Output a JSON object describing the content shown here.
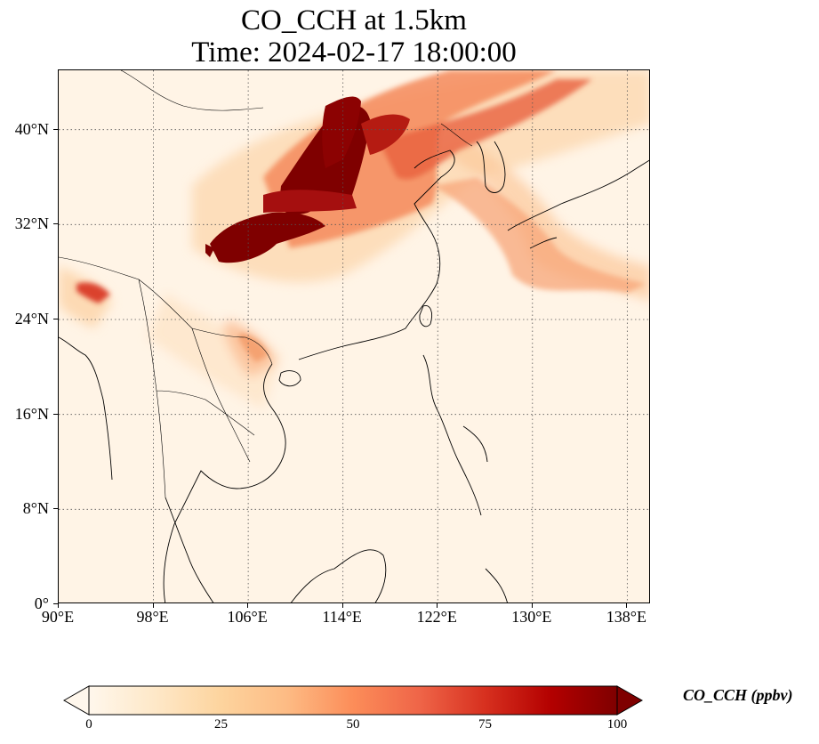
{
  "figure": {
    "title_line1": "CO_CCH at 1.5km",
    "title_line2": "Time: 2024-02-17 18:00:00"
  },
  "map": {
    "projection": "PlateCarree",
    "lon_range": [
      90,
      140
    ],
    "lat_range": [
      0,
      45
    ],
    "gridlines": "dotted",
    "lon_ticks": [
      90,
      98,
      106,
      114,
      122,
      130,
      138
    ],
    "lat_ticks": [
      0,
      8,
      16,
      24,
      32,
      40
    ],
    "lon_tick_labels": [
      "90°E",
      "98°E",
      "106°E",
      "114°E",
      "122°E",
      "130°E",
      "138°E"
    ],
    "lat_tick_labels": [
      "0°",
      "8°N",
      "16°N",
      "24°N",
      "32°N",
      "40°N"
    ],
    "features": [
      "coastlines",
      "country borders"
    ]
  },
  "field": {
    "variable": "CO_CCH",
    "level": "1.5km",
    "background_value": 5,
    "plume_cores": [
      {
        "region": "central/north China",
        "lon": 109,
        "lat": 36,
        "value": 100
      },
      {
        "region": "Sichuan basin",
        "lon": 105,
        "lat": 31,
        "value": 100
      },
      {
        "region": "north-east outflow",
        "lon": 120,
        "lat": 43,
        "value": 60
      },
      {
        "region": "east of Japan",
        "lon": 133,
        "lat": 27,
        "value": 35
      },
      {
        "region": "north-east India",
        "lon": 92,
        "lat": 26.5,
        "value": 80
      },
      {
        "region": "northern Vietnam",
        "lon": 106.5,
        "lat": 21,
        "value": 30
      }
    ]
  },
  "colorbar": {
    "label": "CO_CCH (ppbv)",
    "colormap": "OrRd",
    "vmin": 0,
    "vmax": 100,
    "extend": "both",
    "ticks": [
      0,
      25,
      50,
      75,
      100
    ],
    "tick_labels": [
      "0",
      "25",
      "50",
      "75",
      "100"
    ],
    "colors": [
      "#fff7ec",
      "#fee8c8",
      "#fdd49e",
      "#fdbb84",
      "#fc8d59",
      "#ef6548",
      "#d7301f",
      "#b30000",
      "#7f0000"
    ]
  }
}
